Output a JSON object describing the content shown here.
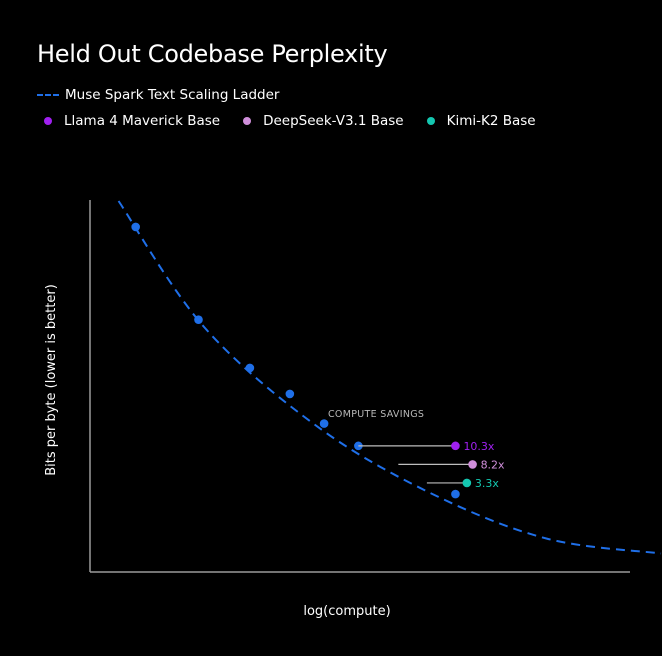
{
  "chart_data": {
    "type": "scatter",
    "title": "Held Out Codebase Perplexity",
    "xlabel": "log(compute)",
    "ylabel": "Bits per byte (lower is better)",
    "x_ticks_shown": false,
    "y_ticks_shown": false,
    "grid": false,
    "legend_placement": "top-left",
    "series": [
      {
        "name": "Muse Spark Text Scaling Ladder",
        "style": "dashed-line-with-markers",
        "color": "#1f6fe8",
        "fit_curve_x": [
          0.05,
          0.2,
          0.4,
          0.6,
          0.8,
          1.0
        ],
        "fit_curve_y": [
          1.0,
          0.66,
          0.39,
          0.21,
          0.09,
          0.05
        ],
        "points_x": [
          0.08,
          0.19,
          0.28,
          0.35,
          0.41,
          0.47,
          0.64
        ],
        "points_y": [
          0.93,
          0.68,
          0.55,
          0.48,
          0.4,
          0.34,
          0.21
        ]
      },
      {
        "name": "Llama 4 Maverick Base",
        "color": "#a020f0",
        "x": 0.64,
        "y": 0.34,
        "savings_label": "10.3x",
        "savings_line_from_x": 0.47
      },
      {
        "name": "DeepSeek-V3.1 Base",
        "color": "#d08fdb",
        "x": 0.67,
        "y": 0.29,
        "savings_label": "8.2x",
        "savings_line_from_x": 0.54
      },
      {
        "name": "Kimi-K2 Base",
        "color": "#14c7b0",
        "x": 0.66,
        "y": 0.24,
        "savings_label": "3.3x",
        "savings_line_from_x": 0.59
      }
    ],
    "annotations": [
      {
        "text": "COMPUTE SAVINGS"
      }
    ]
  }
}
